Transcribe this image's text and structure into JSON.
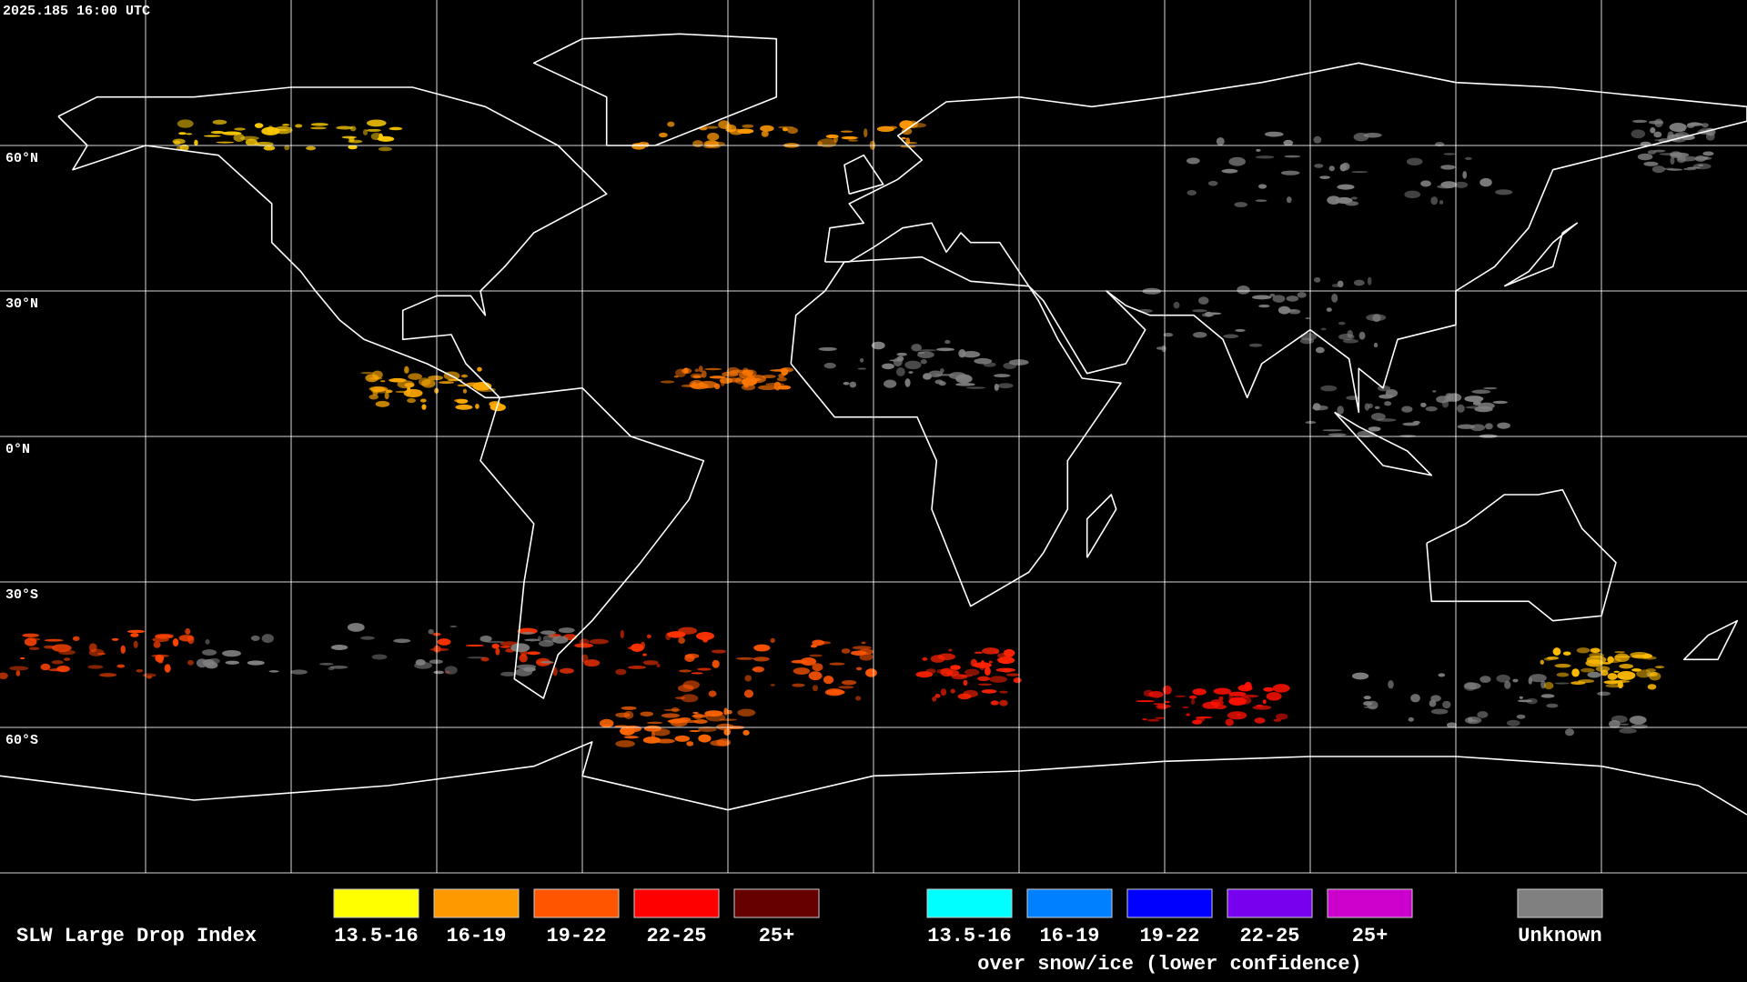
{
  "header": {
    "timestamp": "2025.185 16:00 UTC"
  },
  "map": {
    "latitude_labels": [
      "60°N",
      "30°N",
      "0°N",
      "30°S",
      "60°S"
    ]
  },
  "legend": {
    "title": "SLW Large Drop Index",
    "groups": [
      {
        "items": [
          {
            "label": "13.5-16",
            "color": "#ffff00"
          },
          {
            "label": "16-19",
            "color": "#ff9900"
          },
          {
            "label": "19-22",
            "color": "#ff5500"
          },
          {
            "label": "22-25",
            "color": "#ff0000"
          },
          {
            "label": "25+",
            "color": "#660000"
          }
        ]
      },
      {
        "items": [
          {
            "label": "13.5-16",
            "color": "#00ffff"
          },
          {
            "label": "16-19",
            "color": "#0080ff"
          },
          {
            "label": "19-22",
            "color": "#0000ff"
          },
          {
            "label": "22-25",
            "color": "#7700ee"
          },
          {
            "label": "25+",
            "color": "#cc00cc"
          }
        ],
        "caption": "over snow/ice (lower confidence)"
      },
      {
        "items": [
          {
            "label": "Unknown",
            "color": "#808080"
          }
        ]
      }
    ]
  }
}
